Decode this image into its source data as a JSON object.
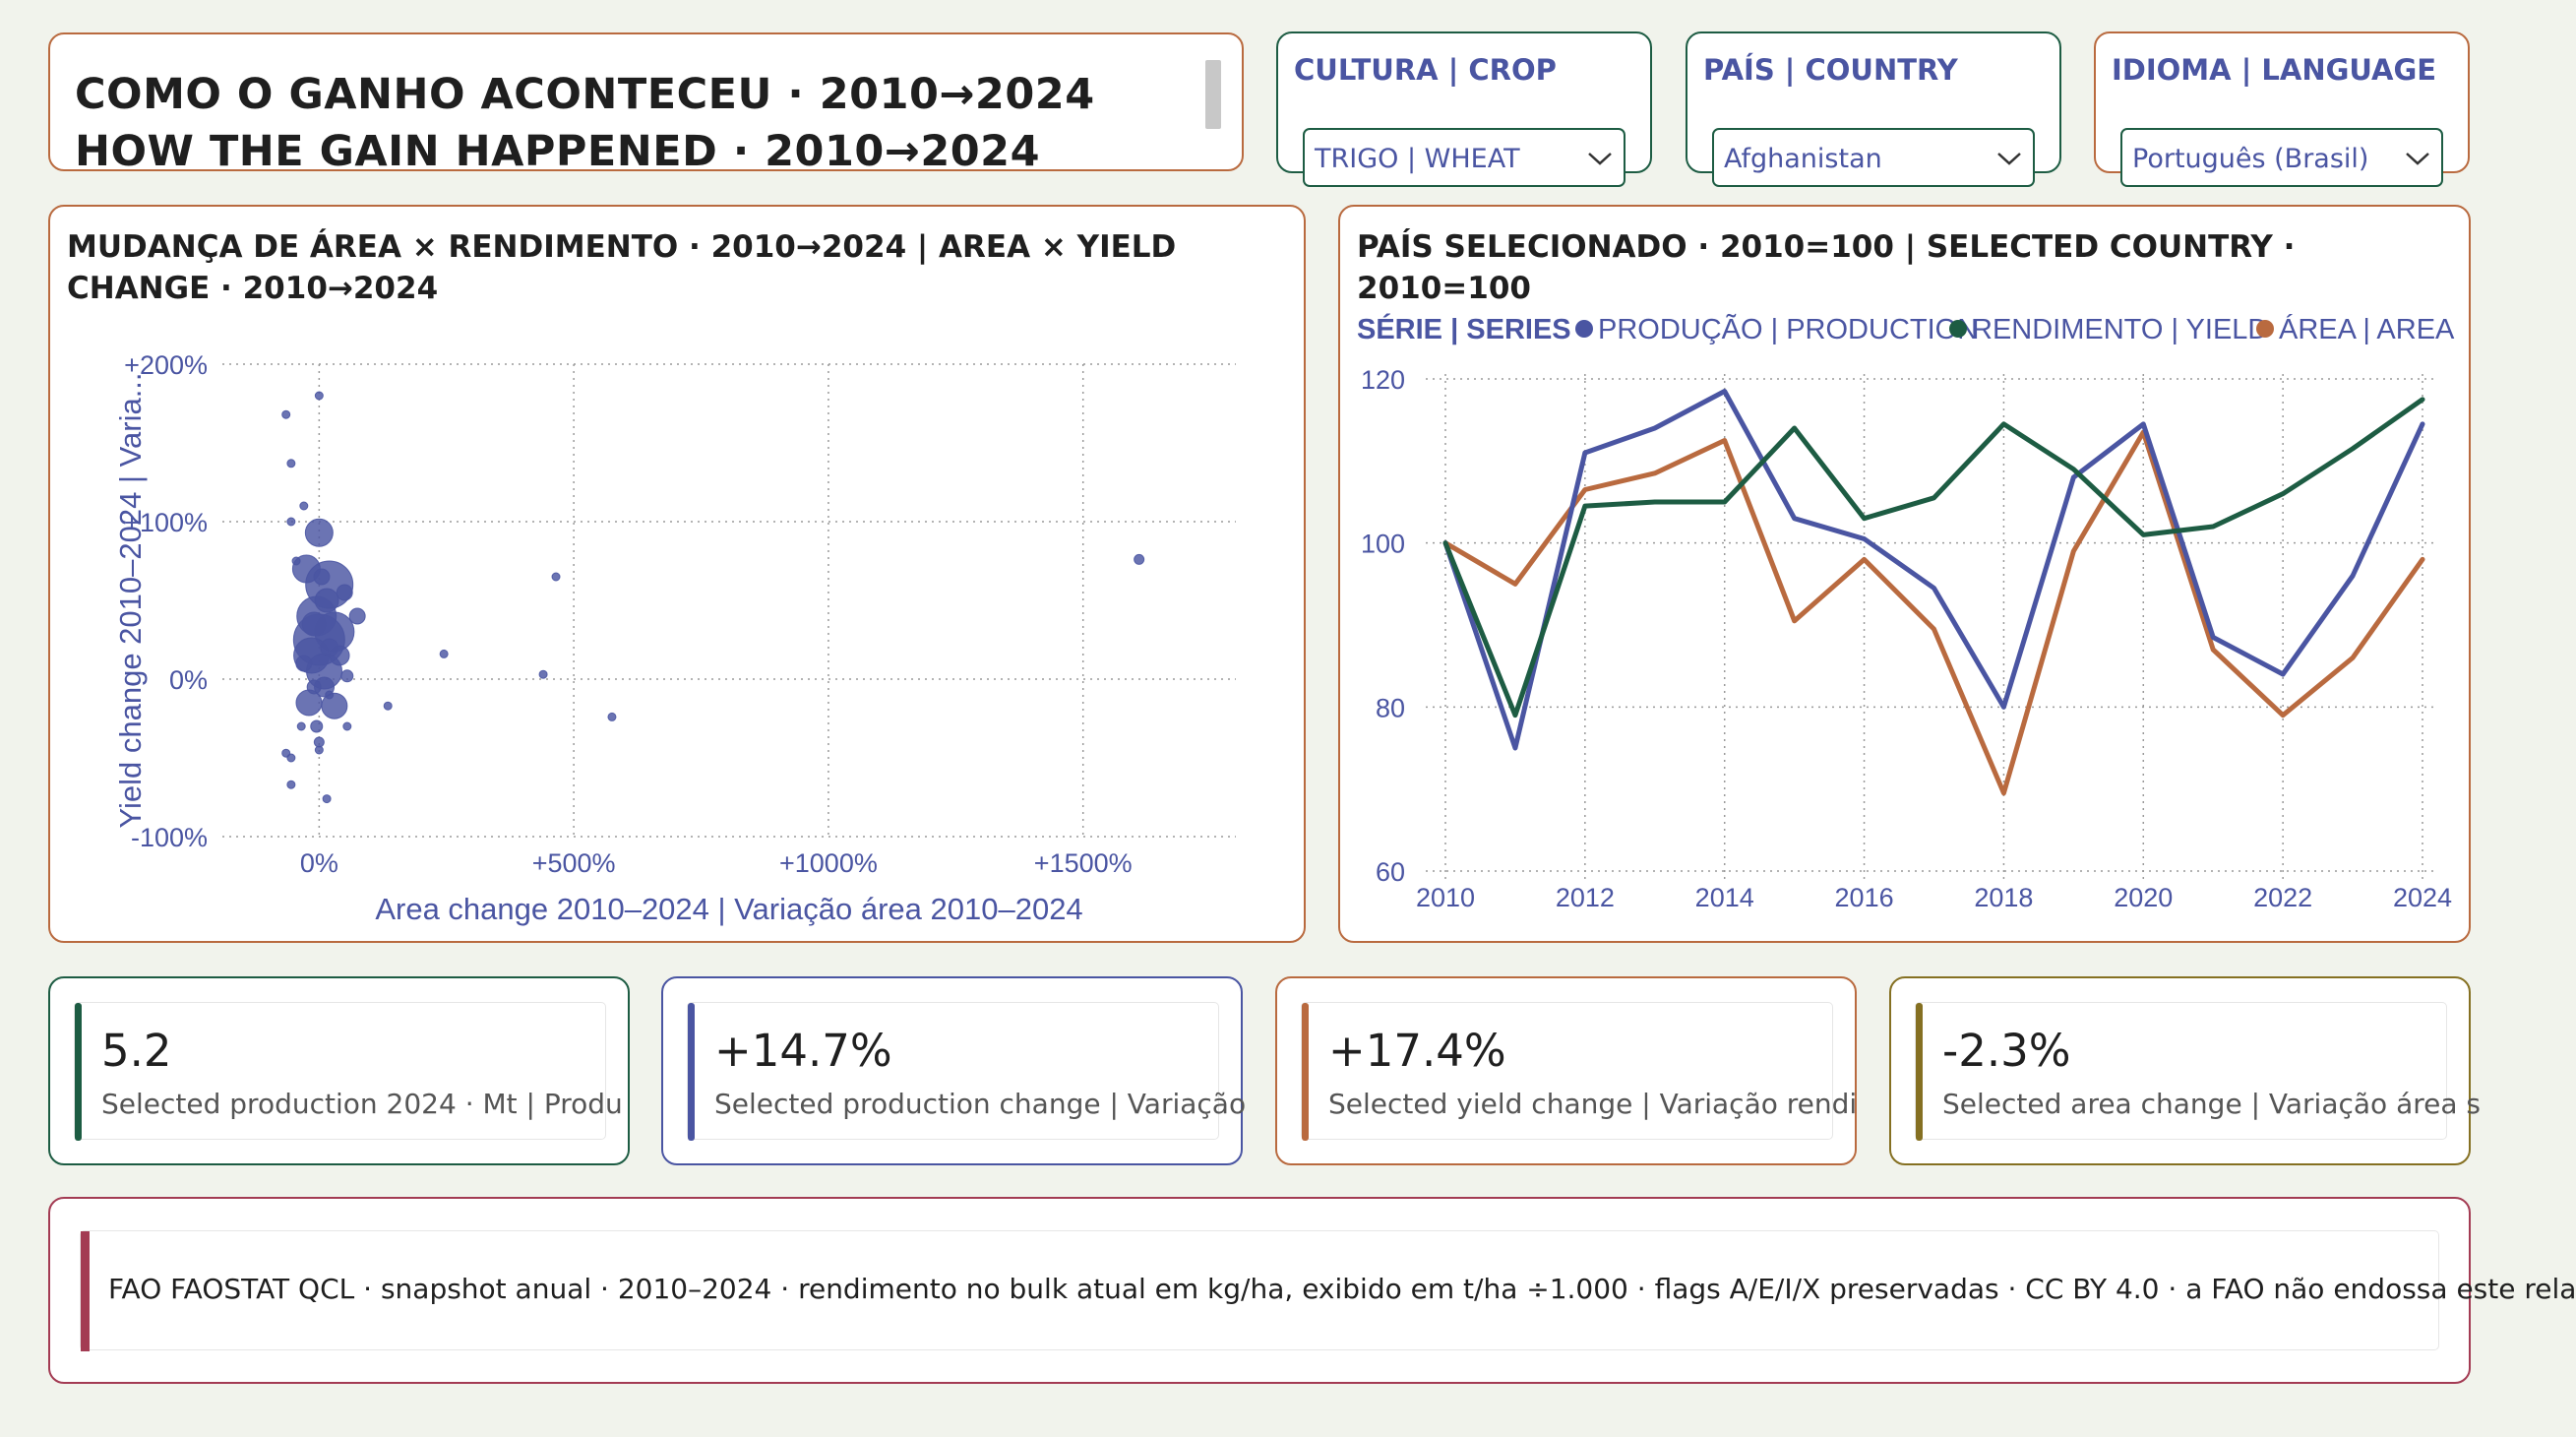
{
  "header": {
    "title_line1": "COMO O GANHO ACONTECEU · 2010→2024",
    "title_line2": "HOW THE GAIN HAPPENED · 2010→2024"
  },
  "slicers": {
    "crop": {
      "label": "CULTURA | CROP",
      "value": "TRIGO | WHEAT"
    },
    "country": {
      "label": "PAÍS | COUNTRY",
      "value": "Afghanistan"
    },
    "language": {
      "label": "IDIOMA | LANGUAGE",
      "value": "Português (Brasil)"
    }
  },
  "icons": {
    "dropdown": "chevron-down-icon",
    "legend_marker": "circle-dot-icon"
  },
  "colors": {
    "production": "#4a55a2",
    "yield": "#1d5c43",
    "area": "#b96a3f",
    "accent_olive": "#857022",
    "accent_footer": "#a33b53"
  },
  "scatter": {
    "title": "MUDANÇA DE ÁREA × RENDIMENTO · 2010→2024 | AREA × YIELD CHANGE · 2010→2024"
  },
  "line": {
    "title": "PAÍS SELECIONADO · 2010=100 | SELECTED COUNTRY · 2010=100"
  },
  "chart_data": [
    {
      "type": "scatter",
      "title": "MUDANÇA DE ÁREA × RENDIMENTO · 2010→2024 | AREA × YIELD CHANGE · 2010→2024",
      "xlabel": "Area change 2010–2024 | Variação área 2010–2024",
      "ylabel": "Yield change 2010–2024 | Varia...",
      "x_ticks": [
        "0%",
        "+500%",
        "+1000%",
        "+1500%"
      ],
      "y_ticks": [
        "+200%",
        "+100%",
        "0%",
        "-100%"
      ],
      "xlim": [
        -190,
        1800
      ],
      "ylim": [
        -100,
        200
      ],
      "grid": true,
      "points": [
        {
          "x": 0,
          "y": 25,
          "r": 26
        },
        {
          "x": 20,
          "y": 60,
          "r": 24
        },
        {
          "x": -5,
          "y": 40,
          "r": 20
        },
        {
          "x": 30,
          "y": 30,
          "r": 20
        },
        {
          "x": -15,
          "y": 15,
          "r": 18
        },
        {
          "x": 10,
          "y": 5,
          "r": 18
        },
        {
          "x": -25,
          "y": 70,
          "r": 14
        },
        {
          "x": 0,
          "y": 93,
          "r": 14
        },
        {
          "x": 30,
          "y": -17,
          "r": 13
        },
        {
          "x": -20,
          "y": -15,
          "r": 13
        },
        {
          "x": 15,
          "y": 50,
          "r": 12
        },
        {
          "x": -10,
          "y": 35,
          "r": 12
        },
        {
          "x": 40,
          "y": 15,
          "r": 10
        },
        {
          "x": 10,
          "y": -5,
          "r": 10
        },
        {
          "x": 75,
          "y": 40,
          "r": 8
        },
        {
          "x": -30,
          "y": 10,
          "r": 8
        },
        {
          "x": 50,
          "y": 55,
          "r": 8
        },
        {
          "x": 5,
          "y": 65,
          "r": 8
        },
        {
          "x": -10,
          "y": -5,
          "r": 7
        },
        {
          "x": 20,
          "y": 20,
          "r": 9
        },
        {
          "x": 55,
          "y": 2,
          "r": 6
        },
        {
          "x": -5,
          "y": -30,
          "r": 6
        },
        {
          "x": 0,
          "y": -40,
          "r": 5
        },
        {
          "x": -45,
          "y": 75,
          "r": 4
        },
        {
          "x": -30,
          "y": 110,
          "r": 4
        },
        {
          "x": -55,
          "y": 100,
          "r": 4
        },
        {
          "x": -35,
          "y": -30,
          "r": 4
        },
        {
          "x": 55,
          "y": -30,
          "r": 4
        },
        {
          "x": 20,
          "y": -10,
          "r": 4
        },
        {
          "x": 0,
          "y": 180,
          "r": 4
        },
        {
          "x": -65,
          "y": 168,
          "r": 4
        },
        {
          "x": -55,
          "y": 137,
          "r": 4
        },
        {
          "x": -65,
          "y": -47,
          "r": 4
        },
        {
          "x": -55,
          "y": -50,
          "r": 4
        },
        {
          "x": 0,
          "y": -45,
          "r": 4
        },
        {
          "x": -55,
          "y": -67,
          "r": 4
        },
        {
          "x": 15,
          "y": -76,
          "r": 4
        },
        {
          "x": 135,
          "y": -17,
          "r": 4
        },
        {
          "x": 245,
          "y": 16,
          "r": 4
        },
        {
          "x": 465,
          "y": 65,
          "r": 4
        },
        {
          "x": 440,
          "y": 3,
          "r": 4
        },
        {
          "x": 575,
          "y": -24,
          "r": 4
        },
        {
          "x": 1610,
          "y": 76,
          "r": 5
        }
      ]
    },
    {
      "type": "line",
      "title": "PAÍS SELECIONADO · 2010=100 | SELECTED COUNTRY · 2010=100",
      "legend_title": "SÉRIE | SERIES",
      "legend_position": "top",
      "x": [
        2010,
        2011,
        2012,
        2013,
        2014,
        2015,
        2016,
        2017,
        2018,
        2019,
        2020,
        2021,
        2022,
        2023,
        2024
      ],
      "x_ticks": [
        2010,
        2012,
        2014,
        2016,
        2018,
        2020,
        2022,
        2024
      ],
      "y_ticks": [
        60,
        80,
        100,
        120
      ],
      "ylim": [
        60,
        120
      ],
      "grid": true,
      "series": [
        {
          "name": "PRODUÇÃO | PRODUCTION",
          "color": "#4a55a2",
          "values": [
            100,
            75,
            111,
            114,
            118.5,
            103,
            100.5,
            94.5,
            80,
            108,
            114.5,
            88.5,
            84,
            96,
            114.5
          ]
        },
        {
          "name": "RENDIMENTO | YIELD",
          "color": "#1d5c43",
          "values": [
            100,
            79,
            104.5,
            105,
            105,
            114,
            103,
            105.5,
            114.5,
            109,
            101,
            102,
            106,
            111.5,
            117.5
          ]
        },
        {
          "name": "ÁREA | AREA",
          "color": "#b96a3f",
          "values": [
            100,
            95,
            106.5,
            108.5,
            112.5,
            90.5,
            98,
            89.5,
            69.5,
            99,
            113.5,
            87,
            79,
            86,
            98
          ]
        }
      ]
    }
  ],
  "kpis": [
    {
      "value": "5.2",
      "label": "Selected production 2024 · Mt | Produ"
    },
    {
      "value": "+14.7%",
      "label": "Selected production change | Variação"
    },
    {
      "value": "+17.4%",
      "label": "Selected yield change | Variação rendi"
    },
    {
      "value": "-2.3%",
      "label": "Selected area change | Variação área s"
    }
  ],
  "footer": {
    "text": "FAO FAOSTAT QCL · snapshot anual · 2010–2024 · rendimento no bulk atual em kg/ha, exibido em t/ha ÷1.000 · flags A/E/I/X preservadas · CC BY 4.0 · a FAO não endossa este rela"
  }
}
